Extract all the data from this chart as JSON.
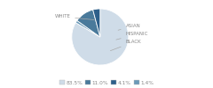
{
  "labels": [
    "WHITE",
    "ASIAN",
    "HISPANIC",
    "BLACK"
  ],
  "values": [
    83.5,
    1.4,
    11.0,
    4.1
  ],
  "colors": [
    "#cfdce8",
    "#6b9ab8",
    "#4a7a9b",
    "#2d5f8a"
  ],
  "legend_labels": [
    "83.5%",
    "11.0%",
    "4.1%",
    "1.4%"
  ],
  "legend_colors": [
    "#cfdce8",
    "#6b9ab8",
    "#4a7a9b",
    "#b8ccd8"
  ],
  "label_color": "#888888",
  "startangle": 90
}
